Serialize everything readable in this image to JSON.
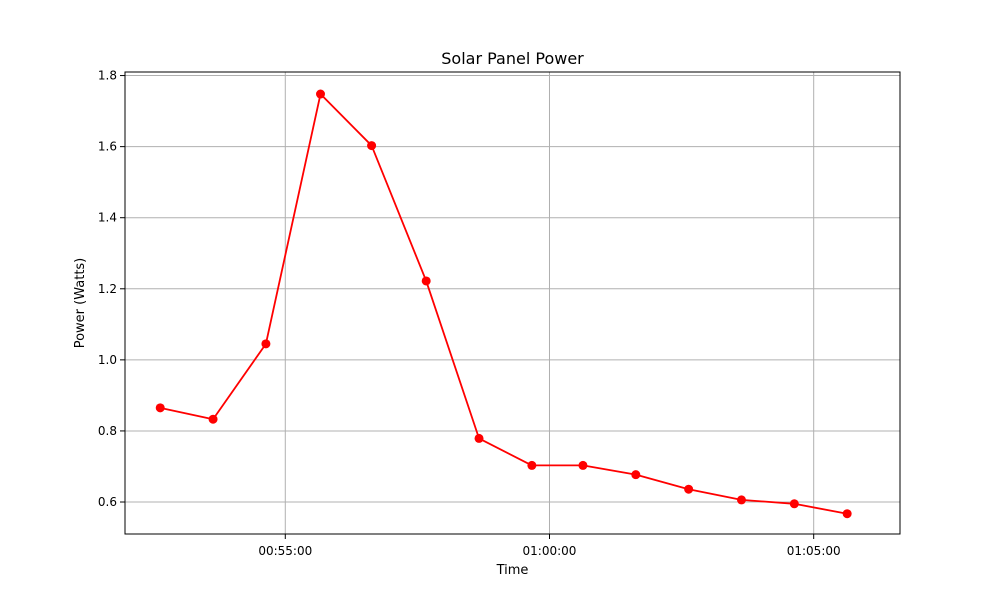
{
  "chart_data": {
    "type": "line",
    "title": "Solar Panel Power",
    "xlabel": "Time",
    "ylabel": "Power (Watts)",
    "x": [
      "00:52:38",
      "00:53:38",
      "00:54:38",
      "00:55:40",
      "00:56:38",
      "00:57:40",
      "00:58:40",
      "00:59:40",
      "01:00:38",
      "01:01:38",
      "01:02:38",
      "01:03:38",
      "01:04:38",
      "01:05:38"
    ],
    "series": [
      {
        "name": "",
        "values": [
          0.865,
          0.833,
          1.045,
          1.748,
          1.603,
          1.222,
          0.779,
          0.703,
          0.703,
          0.677,
          0.636,
          0.606,
          0.595,
          0.567
        ],
        "color": "#ff0000"
      }
    ],
    "xlim": [
      "00:51:58",
      "01:06:38"
    ],
    "ylim": [
      0.51,
      1.81
    ],
    "xticks": [
      "00:55:00",
      "01:00:00",
      "01:05:00"
    ],
    "yticks": [
      "0.6",
      "0.8",
      "1.0",
      "1.2",
      "1.4",
      "1.6",
      "1.8"
    ],
    "grid": true,
    "legend": "none"
  }
}
